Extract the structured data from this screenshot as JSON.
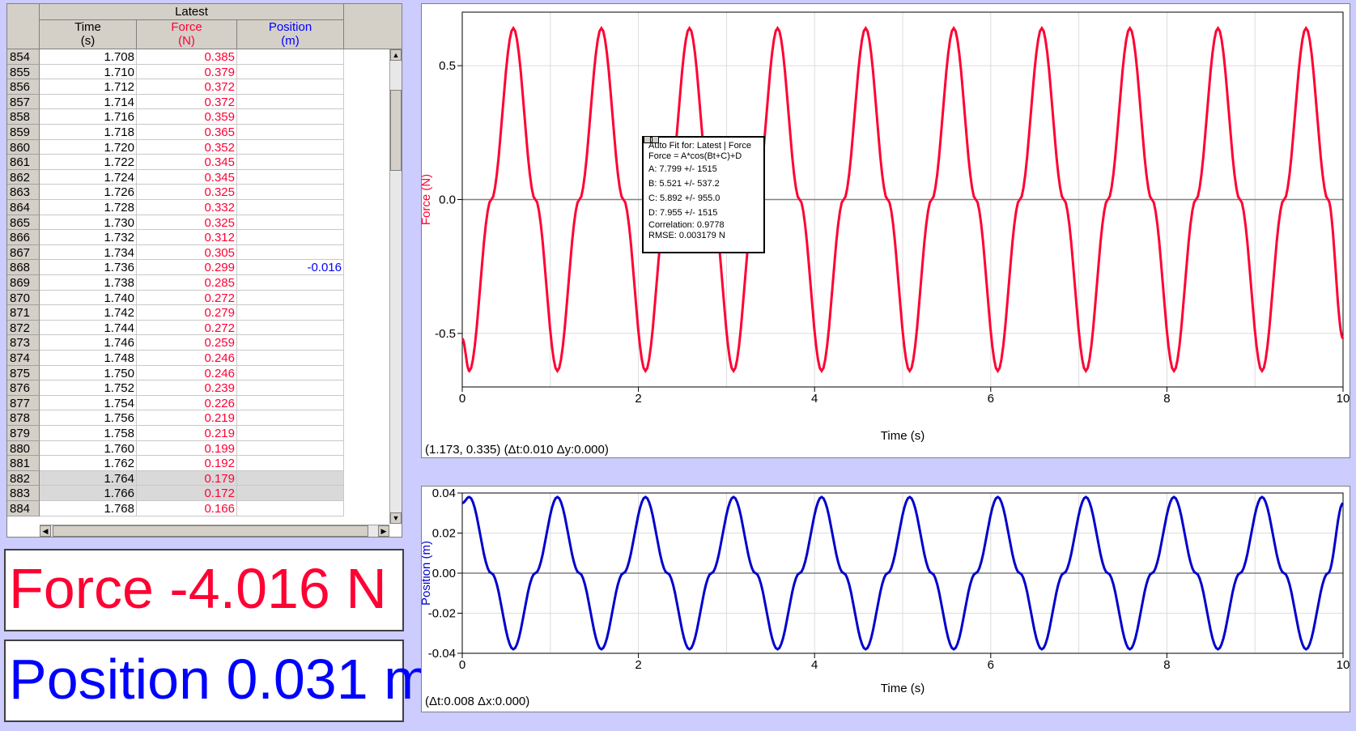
{
  "table": {
    "group_label": "Latest",
    "columns": [
      {
        "name": "Time",
        "unit": "(s)",
        "color": "#000000"
      },
      {
        "name": "Force",
        "unit": "(N)",
        "color": "#ff0033"
      },
      {
        "name": "Position",
        "unit": "(m)",
        "color": "#0000ff"
      }
    ],
    "rows": [
      {
        "n": "854",
        "t": "1.708",
        "f": "0.385",
        "p": ""
      },
      {
        "n": "855",
        "t": "1.710",
        "f": "0.379",
        "p": ""
      },
      {
        "n": "856",
        "t": "1.712",
        "f": "0.372",
        "p": ""
      },
      {
        "n": "857",
        "t": "1.714",
        "f": "0.372",
        "p": ""
      },
      {
        "n": "858",
        "t": "1.716",
        "f": "0.359",
        "p": ""
      },
      {
        "n": "859",
        "t": "1.718",
        "f": "0.365",
        "p": ""
      },
      {
        "n": "860",
        "t": "1.720",
        "f": "0.352",
        "p": ""
      },
      {
        "n": "861",
        "t": "1.722",
        "f": "0.345",
        "p": ""
      },
      {
        "n": "862",
        "t": "1.724",
        "f": "0.345",
        "p": ""
      },
      {
        "n": "863",
        "t": "1.726",
        "f": "0.325",
        "p": ""
      },
      {
        "n": "864",
        "t": "1.728",
        "f": "0.332",
        "p": ""
      },
      {
        "n": "865",
        "t": "1.730",
        "f": "0.325",
        "p": ""
      },
      {
        "n": "866",
        "t": "1.732",
        "f": "0.312",
        "p": ""
      },
      {
        "n": "867",
        "t": "1.734",
        "f": "0.305",
        "p": ""
      },
      {
        "n": "868",
        "t": "1.736",
        "f": "0.299",
        "p": "-0.016"
      },
      {
        "n": "869",
        "t": "1.738",
        "f": "0.285",
        "p": ""
      },
      {
        "n": "870",
        "t": "1.740",
        "f": "0.272",
        "p": ""
      },
      {
        "n": "871",
        "t": "1.742",
        "f": "0.279",
        "p": ""
      },
      {
        "n": "872",
        "t": "1.744",
        "f": "0.272",
        "p": ""
      },
      {
        "n": "873",
        "t": "1.746",
        "f": "0.259",
        "p": ""
      },
      {
        "n": "874",
        "t": "1.748",
        "f": "0.246",
        "p": ""
      },
      {
        "n": "875",
        "t": "1.750",
        "f": "0.246",
        "p": ""
      },
      {
        "n": "876",
        "t": "1.752",
        "f": "0.239",
        "p": ""
      },
      {
        "n": "877",
        "t": "1.754",
        "f": "0.226",
        "p": ""
      },
      {
        "n": "878",
        "t": "1.756",
        "f": "0.219",
        "p": ""
      },
      {
        "n": "879",
        "t": "1.758",
        "f": "0.219",
        "p": ""
      },
      {
        "n": "880",
        "t": "1.760",
        "f": "0.199",
        "p": ""
      },
      {
        "n": "881",
        "t": "1.762",
        "f": "0.192",
        "p": ""
      },
      {
        "n": "882",
        "t": "1.764",
        "f": "0.179",
        "p": "",
        "selected": true
      },
      {
        "n": "883",
        "t": "1.766",
        "f": "0.172",
        "p": "",
        "selected": true
      },
      {
        "n": "884",
        "t": "1.768",
        "f": "0.166",
        "p": ""
      }
    ]
  },
  "meters": {
    "force": {
      "text": "Force -4.016 N",
      "color": "#ff0033"
    },
    "position": {
      "text": "Position 0.031 m",
      "color": "#0000ff"
    }
  },
  "force_graph": {
    "ylabel": "Force (N)",
    "xlabel": "Time (s)",
    "status": "(1.173, 0.335) (Δt:0.010 Δy:0.000)",
    "line_color": "#ff0033",
    "x_ticks": [
      "0",
      "2",
      "4",
      "6",
      "8",
      "10"
    ],
    "y_ticks": [
      "0.5",
      "0.0",
      "-0.5"
    ]
  },
  "fit_box": {
    "title": "Auto Fit for: Latest | Force",
    "equation": "Force = A*cos(Bt+C)+D",
    "a": "A: 7.799 +/- 1515",
    "b": "B: 5.521 +/- 537.2",
    "c": "C: 5.892 +/- 955.0",
    "d": "D: 7.955 +/- 1515",
    "correlation": "Correlation: 0.9778",
    "rmse": "RMSE: 0.003179 N"
  },
  "position_graph": {
    "ylabel": "Position (m)",
    "xlabel": "Time (s)",
    "status": "(Δt:0.008 Δx:0.000)",
    "line_color": "#0000cc",
    "x_ticks": [
      "0",
      "2",
      "4",
      "6",
      "8",
      "10"
    ],
    "y_ticks": [
      "0.04",
      "0.02",
      "0.00",
      "-0.02",
      "-0.04"
    ]
  },
  "chart_data": [
    {
      "type": "line",
      "xlabel": "Time (s)",
      "ylabel": "Force (N)",
      "xlim": [
        0,
        10
      ],
      "ylim": [
        -0.7,
        0.7
      ],
      "grid": true,
      "series": [
        {
          "x": [
            0,
            0.08,
            0.33,
            0.58,
            0.83,
            1.08,
            1.33,
            1.58,
            1.83,
            2.08,
            2.33,
            2.58,
            2.83,
            3.08,
            3.33,
            3.58,
            3.83,
            4.08,
            4.33,
            4.58,
            4.83,
            5.08,
            5.33,
            5.58,
            5.83,
            6.08,
            6.33,
            6.58,
            6.83,
            7.08,
            7.33,
            7.58,
            7.83,
            8.08,
            8.33,
            8.58,
            8.83,
            9.08,
            9.33,
            9.58,
            9.83,
            10
          ],
          "y": [
            -0.52,
            -0.64,
            0,
            0.64,
            0,
            -0.64,
            0,
            0.64,
            0,
            -0.64,
            0,
            0.64,
            0,
            -0.64,
            0,
            0.64,
            0,
            -0.64,
            0,
            0.64,
            0,
            -0.64,
            0,
            0.64,
            0,
            -0.64,
            0,
            0.64,
            0,
            -0.64,
            0,
            0.64,
            0,
            -0.64,
            0,
            0.64,
            0,
            -0.64,
            0,
            0.64,
            0,
            -0.52
          ]
        }
      ]
    },
    {
      "type": "line",
      "xlabel": "Time (s)",
      "ylabel": "Position (m)",
      "xlim": [
        0,
        10
      ],
      "ylim": [
        -0.04,
        0.04
      ],
      "grid": true,
      "series": [
        {
          "x": [
            0,
            0.08,
            0.33,
            0.58,
            0.83,
            1.08,
            1.33,
            1.58,
            1.83,
            2.08,
            2.33,
            2.58,
            2.83,
            3.08,
            3.33,
            3.58,
            3.83,
            4.08,
            4.33,
            4.58,
            4.83,
            5.08,
            5.33,
            5.58,
            5.83,
            6.08,
            6.33,
            6.58,
            6.83,
            7.08,
            7.33,
            7.58,
            7.83,
            8.08,
            8.33,
            8.58,
            8.83,
            9.08,
            9.33,
            9.58,
            9.83,
            10
          ],
          "y": [
            0.035,
            0.038,
            0,
            -0.038,
            0,
            0.038,
            0,
            -0.038,
            0,
            0.038,
            0,
            -0.038,
            0,
            0.038,
            0,
            -0.038,
            0,
            0.038,
            0,
            -0.038,
            0,
            0.038,
            0,
            -0.038,
            0,
            0.038,
            0,
            -0.038,
            0,
            0.038,
            0,
            -0.038,
            0,
            0.038,
            0,
            -0.038,
            0,
            0.038,
            0,
            -0.038,
            0,
            0.035
          ]
        }
      ]
    }
  ]
}
